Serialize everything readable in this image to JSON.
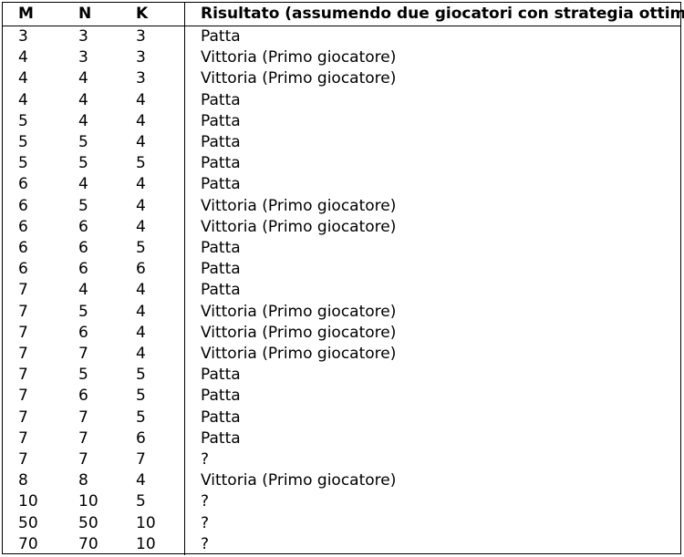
{
  "table": {
    "headers": {
      "m": "M",
      "n": "N",
      "k": "K",
      "result": "Risultato (assumendo due giocatori con strategia ottima)"
    },
    "rows": [
      {
        "m": "3",
        "n": "3",
        "k": "3",
        "result": "Patta"
      },
      {
        "m": "4",
        "n": "3",
        "k": "3",
        "result": "Vittoria (Primo giocatore)"
      },
      {
        "m": "4",
        "n": "4",
        "k": "3",
        "result": "Vittoria (Primo giocatore)"
      },
      {
        "m": "4",
        "n": "4",
        "k": "4",
        "result": "Patta"
      },
      {
        "m": "5",
        "n": "4",
        "k": "4",
        "result": "Patta"
      },
      {
        "m": "5",
        "n": "5",
        "k": "4",
        "result": "Patta"
      },
      {
        "m": "5",
        "n": "5",
        "k": "5",
        "result": "Patta"
      },
      {
        "m": "6",
        "n": "4",
        "k": "4",
        "result": "Patta"
      },
      {
        "m": "6",
        "n": "5",
        "k": "4",
        "result": "Vittoria (Primo giocatore)"
      },
      {
        "m": "6",
        "n": "6",
        "k": "4",
        "result": "Vittoria (Primo giocatore)"
      },
      {
        "m": "6",
        "n": "6",
        "k": "5",
        "result": "Patta"
      },
      {
        "m": "6",
        "n": "6",
        "k": "6",
        "result": "Patta"
      },
      {
        "m": "7",
        "n": "4",
        "k": "4",
        "result": "Patta"
      },
      {
        "m": "7",
        "n": "5",
        "k": "4",
        "result": "Vittoria (Primo giocatore)"
      },
      {
        "m": "7",
        "n": "6",
        "k": "4",
        "result": "Vittoria (Primo giocatore)"
      },
      {
        "m": "7",
        "n": "7",
        "k": "4",
        "result": "Vittoria (Primo giocatore)"
      },
      {
        "m": "7",
        "n": "5",
        "k": "5",
        "result": "Patta"
      },
      {
        "m": "7",
        "n": "6",
        "k": "5",
        "result": "Patta"
      },
      {
        "m": "7",
        "n": "7",
        "k": "5",
        "result": "Patta"
      },
      {
        "m": "7",
        "n": "7",
        "k": "6",
        "result": "Patta"
      },
      {
        "m": "7",
        "n": "7",
        "k": "7",
        "result": "?"
      },
      {
        "m": "8",
        "n": "8",
        "k": "4",
        "result": "Vittoria (Primo giocatore)"
      },
      {
        "m": "10",
        "n": "10",
        "k": "5",
        "result": "?"
      },
      {
        "m": "50",
        "n": "50",
        "k": "10",
        "result": "?"
      },
      {
        "m": "70",
        "n": "70",
        "k": "10",
        "result": "?"
      }
    ]
  }
}
